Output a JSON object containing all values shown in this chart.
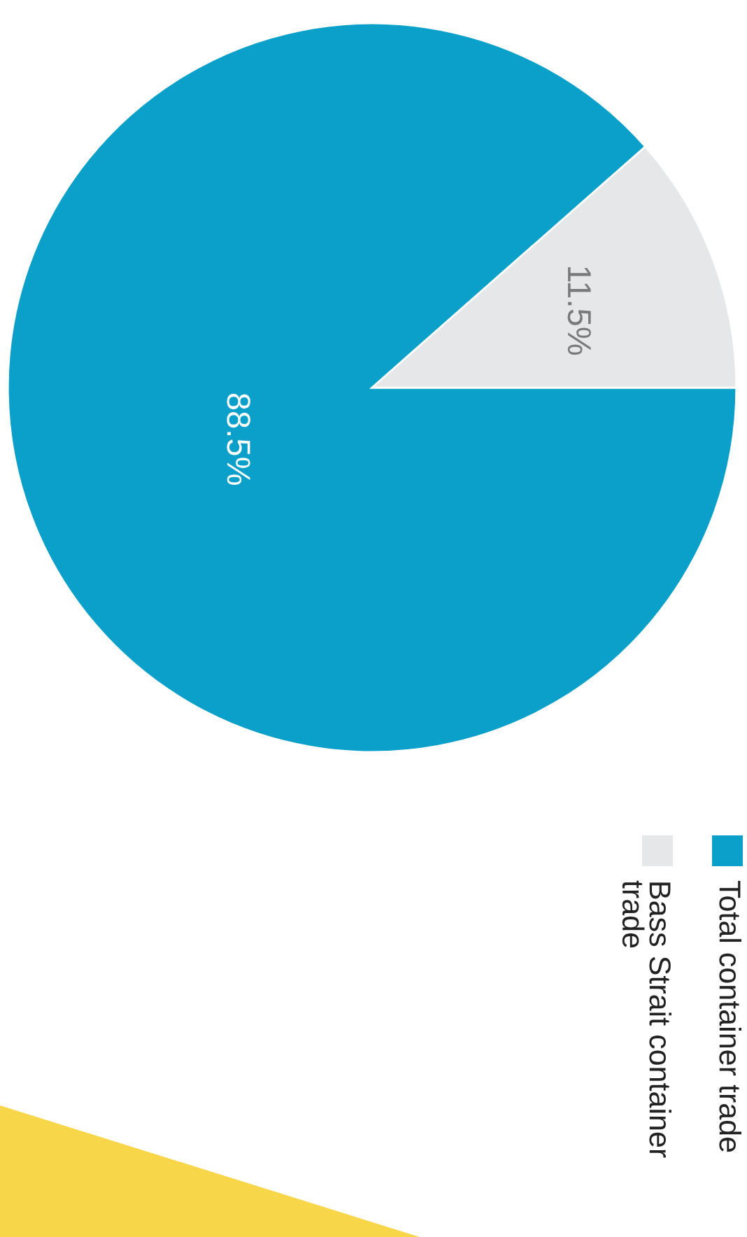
{
  "chart_data": {
    "type": "pie",
    "categories": [
      "Total container trade",
      "Bass Strait container trade"
    ],
    "values": [
      88.5,
      11.5
    ],
    "colors": [
      "#0aa0c9",
      "#e6e7e9"
    ],
    "value_labels": [
      "88.5%",
      "11.5%"
    ],
    "legend": "bottom"
  }
}
